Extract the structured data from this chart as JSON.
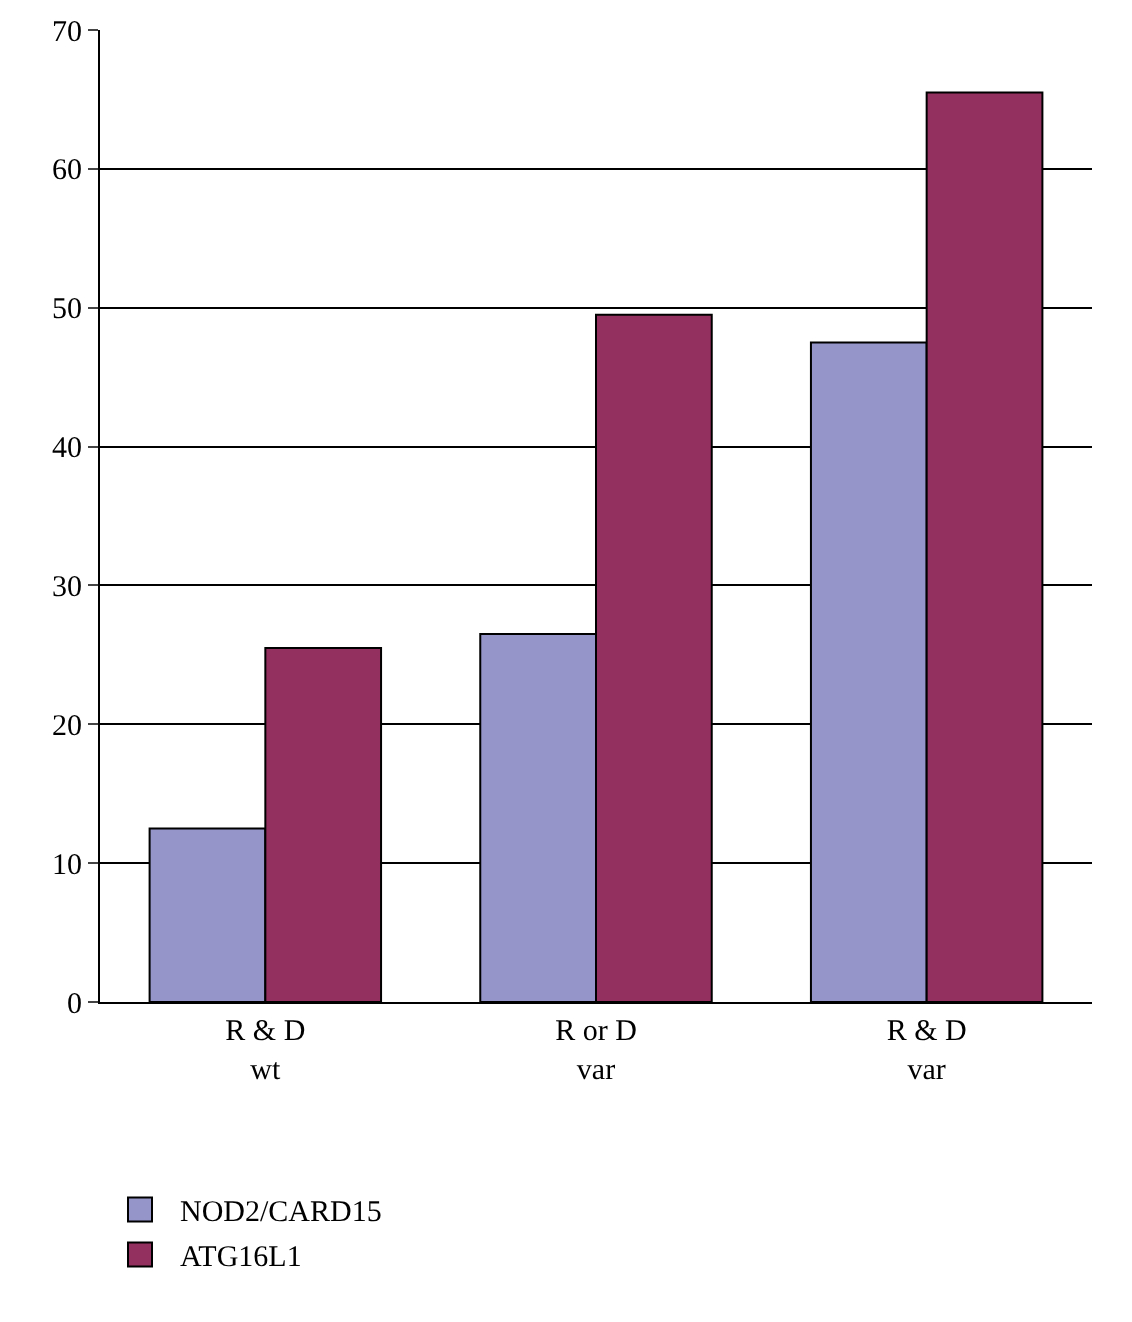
{
  "chart_data": {
    "type": "bar",
    "categories": [
      "R & D\nwt",
      "R or D\nvar",
      "R & D\nvar"
    ],
    "series": [
      {
        "name": "NOD2/CARD15",
        "color": "#9595c9",
        "values": [
          12.5,
          26.5,
          47.5
        ]
      },
      {
        "name": "ATG16L1",
        "color": "#93305f",
        "values": [
          25.5,
          49.5,
          65.5
        ]
      }
    ],
    "ylim": [
      0,
      70
    ],
    "yticks": [
      0,
      10,
      20,
      30,
      40,
      50,
      60,
      70
    ],
    "grid": "y",
    "legend": "bottom left"
  }
}
